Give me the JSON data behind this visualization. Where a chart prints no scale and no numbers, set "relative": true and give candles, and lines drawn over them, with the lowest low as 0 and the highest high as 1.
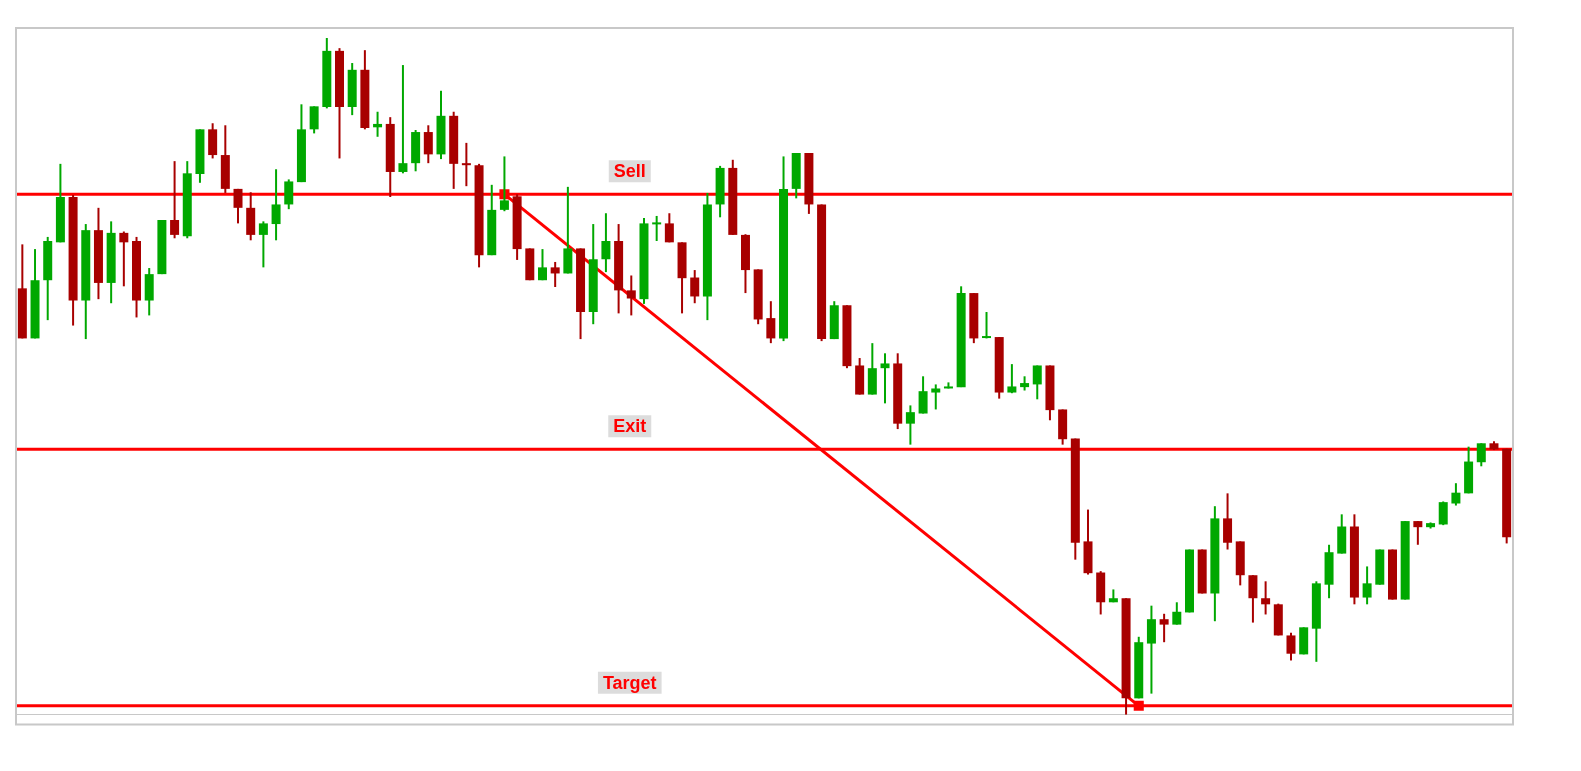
{
  "chart_data": {
    "type": "candlestick",
    "relative": true,
    "categories": [
      null,
      null,
      null,
      null,
      null,
      null,
      null,
      null,
      null,
      null,
      null,
      null,
      null,
      null,
      null,
      null,
      null,
      null,
      null,
      null,
      null,
      null,
      null,
      null,
      null,
      null,
      null,
      null,
      null,
      null,
      null,
      null,
      null,
      null,
      null,
      null,
      null,
      null,
      null,
      null,
      null,
      null,
      null,
      null,
      null,
      null,
      null,
      null,
      null,
      null,
      null,
      null,
      null,
      null,
      null,
      null,
      null,
      null,
      null,
      null,
      null,
      null,
      null,
      null,
      null,
      null,
      null,
      null,
      null,
      null,
      null,
      null,
      null,
      null,
      null,
      null,
      null,
      null,
      null,
      null,
      null,
      null,
      null,
      null,
      null,
      null,
      null,
      null,
      null,
      null,
      null,
      null,
      null,
      null,
      null,
      null,
      null,
      null,
      null,
      null,
      null,
      null,
      null,
      null,
      null,
      null,
      null,
      null,
      null,
      null,
      null,
      null,
      null,
      null,
      null,
      null,
      null,
      null
    ],
    "ohlc": [
      [
        0.63,
        0.695,
        0.556,
        0.556
      ],
      [
        0.556,
        0.688,
        0.556,
        0.642
      ],
      [
        0.642,
        0.706,
        0.583,
        0.7
      ],
      [
        0.698,
        0.814,
        0.698,
        0.765
      ],
      [
        0.765,
        0.768,
        0.575,
        0.612
      ],
      [
        0.612,
        0.725,
        0.555,
        0.716
      ],
      [
        0.716,
        0.749,
        0.614,
        0.638
      ],
      [
        0.638,
        0.729,
        0.608,
        0.712
      ],
      [
        0.712,
        0.714,
        0.633,
        0.698
      ],
      [
        0.7,
        0.706,
        0.587,
        0.612
      ],
      [
        0.612,
        0.66,
        0.59,
        0.651
      ],
      [
        0.651,
        0.731,
        0.651,
        0.731
      ],
      [
        0.731,
        0.818,
        0.704,
        0.709
      ],
      [
        0.707,
        0.818,
        0.704,
        0.8
      ],
      [
        0.799,
        0.865,
        0.786,
        0.865
      ],
      [
        0.865,
        0.874,
        0.822,
        0.827
      ],
      [
        0.827,
        0.871,
        0.771,
        0.777
      ],
      [
        0.777,
        0.777,
        0.726,
        0.749
      ],
      [
        0.749,
        0.772,
        0.701,
        0.709
      ],
      [
        0.709,
        0.729,
        0.661,
        0.726
      ],
      [
        0.725,
        0.806,
        0.701,
        0.754
      ],
      [
        0.754,
        0.791,
        0.747,
        0.788
      ],
      [
        0.787,
        0.902,
        0.787,
        0.865
      ],
      [
        0.865,
        0.899,
        0.859,
        0.899
      ],
      [
        0.898,
        1.0,
        0.896,
        0.981
      ],
      [
        0.981,
        0.985,
        0.822,
        0.898
      ],
      [
        0.898,
        0.963,
        0.886,
        0.953
      ],
      [
        0.953,
        0.982,
        0.865,
        0.867
      ],
      [
        0.868,
        0.891,
        0.854,
        0.873
      ],
      [
        0.873,
        0.883,
        0.765,
        0.802
      ],
      [
        0.802,
        0.96,
        0.8,
        0.815
      ],
      [
        0.815,
        0.864,
        0.803,
        0.861
      ],
      [
        0.861,
        0.871,
        0.815,
        0.828
      ],
      [
        0.828,
        0.922,
        0.821,
        0.885
      ],
      [
        0.885,
        0.891,
        0.777,
        0.814
      ],
      [
        0.815,
        0.845,
        0.781,
        0.812
      ],
      [
        0.812,
        0.814,
        0.661,
        0.679
      ],
      [
        0.679,
        0.783,
        0.679,
        0.746
      ],
      [
        0.746,
        0.825,
        0.744,
        0.76
      ],
      [
        0.766,
        0.769,
        0.672,
        0.688
      ],
      [
        0.689,
        0.689,
        0.642,
        0.642
      ],
      [
        0.642,
        0.688,
        0.642,
        0.661
      ],
      [
        0.661,
        0.669,
        0.632,
        0.652
      ],
      [
        0.652,
        0.78,
        0.652,
        0.689
      ],
      [
        0.689,
        0.689,
        0.555,
        0.595
      ],
      [
        0.595,
        0.725,
        0.577,
        0.673
      ],
      [
        0.673,
        0.741,
        0.654,
        0.7
      ],
      [
        0.7,
        0.725,
        0.593,
        0.627
      ],
      [
        0.627,
        0.649,
        0.59,
        0.615
      ],
      [
        0.614,
        0.734,
        0.607,
        0.726
      ],
      [
        0.725,
        0.737,
        0.7,
        0.726
      ],
      [
        0.726,
        0.741,
        0.698,
        0.698
      ],
      [
        0.698,
        0.698,
        0.593,
        0.645
      ],
      [
        0.646,
        0.657,
        0.608,
        0.618
      ],
      [
        0.618,
        0.771,
        0.583,
        0.754
      ],
      [
        0.754,
        0.811,
        0.735,
        0.808
      ],
      [
        0.808,
        0.82,
        0.709,
        0.709
      ],
      [
        0.709,
        0.71,
        0.623,
        0.657
      ],
      [
        0.658,
        0.658,
        0.577,
        0.584
      ],
      [
        0.586,
        0.611,
        0.549,
        0.556
      ],
      [
        0.556,
        0.825,
        0.552,
        0.777
      ],
      [
        0.777,
        0.83,
        0.763,
        0.83
      ],
      [
        0.83,
        0.83,
        0.74,
        0.754
      ],
      [
        0.754,
        0.754,
        0.552,
        0.555
      ],
      [
        0.555,
        0.611,
        0.555,
        0.605
      ],
      [
        0.605,
        0.605,
        0.512,
        0.515
      ],
      [
        0.516,
        0.527,
        0.473,
        0.473
      ],
      [
        0.473,
        0.549,
        0.473,
        0.512
      ],
      [
        0.512,
        0.534,
        0.46,
        0.519
      ],
      [
        0.519,
        0.534,
        0.422,
        0.43
      ],
      [
        0.43,
        0.457,
        0.399,
        0.447
      ],
      [
        0.445,
        0.5,
        0.445,
        0.478
      ],
      [
        0.476,
        0.488,
        0.451,
        0.482
      ],
      [
        0.482,
        0.491,
        0.482,
        0.485
      ],
      [
        0.484,
        0.633,
        0.484,
        0.623
      ],
      [
        0.623,
        0.623,
        0.549,
        0.556
      ],
      [
        0.556,
        0.595,
        0.556,
        0.558
      ],
      [
        0.558,
        0.558,
        0.467,
        0.476
      ],
      [
        0.476,
        0.518,
        0.475,
        0.485
      ],
      [
        0.484,
        0.5,
        0.479,
        0.49
      ],
      [
        0.488,
        0.516,
        0.466,
        0.516
      ],
      [
        0.516,
        0.516,
        0.435,
        0.45
      ],
      [
        0.451,
        0.451,
        0.399,
        0.407
      ],
      [
        0.408,
        0.408,
        0.229,
        0.254
      ],
      [
        0.256,
        0.303,
        0.207,
        0.209
      ],
      [
        0.21,
        0.212,
        0.148,
        0.166
      ],
      [
        0.166,
        0.185,
        0.166,
        0.172
      ],
      [
        0.172,
        0.172,
        0.0,
        0.024
      ],
      [
        0.024,
        0.115,
        0.024,
        0.107
      ],
      [
        0.105,
        0.161,
        0.031,
        0.141
      ],
      [
        0.141,
        0.149,
        0.107,
        0.133
      ],
      [
        0.133,
        0.166,
        0.133,
        0.152
      ],
      [
        0.151,
        0.244,
        0.151,
        0.244
      ],
      [
        0.244,
        0.244,
        0.179,
        0.179
      ],
      [
        0.179,
        0.308,
        0.138,
        0.29
      ],
      [
        0.29,
        0.327,
        0.244,
        0.254
      ],
      [
        0.256,
        0.256,
        0.191,
        0.206
      ],
      [
        0.206,
        0.206,
        0.136,
        0.172
      ],
      [
        0.172,
        0.197,
        0.148,
        0.163
      ],
      [
        0.163,
        0.164,
        0.117,
        0.117
      ],
      [
        0.117,
        0.121,
        0.08,
        0.09
      ],
      [
        0.089,
        0.129,
        0.089,
        0.129
      ],
      [
        0.127,
        0.197,
        0.078,
        0.194
      ],
      [
        0.192,
        0.251,
        0.172,
        0.24
      ],
      [
        0.238,
        0.296,
        0.238,
        0.278
      ],
      [
        0.278,
        0.296,
        0.163,
        0.173
      ],
      [
        0.173,
        0.219,
        0.163,
        0.194
      ],
      [
        0.192,
        0.244,
        0.192,
        0.244
      ],
      [
        0.244,
        0.244,
        0.17,
        0.17
      ],
      [
        0.17,
        0.286,
        0.17,
        0.286
      ],
      [
        0.286,
        0.286,
        0.251,
        0.277
      ],
      [
        0.277,
        0.284,
        0.275,
        0.283
      ],
      [
        0.281,
        0.315,
        0.28,
        0.314
      ],
      [
        0.312,
        0.342,
        0.309,
        0.328
      ],
      [
        0.327,
        0.396,
        0.327,
        0.374
      ],
      [
        0.373,
        0.401,
        0.367,
        0.401
      ],
      [
        0.401,
        0.404,
        0.391,
        0.392
      ],
      [
        0.393,
        0.393,
        0.253,
        0.262
      ]
    ],
    "colors": [
      "#a80000",
      "#00a800",
      "#00a800",
      "#00a800",
      "#a80000",
      "#00a800",
      "#a80000",
      "#00a800",
      "#a80000",
      "#a80000",
      "#00a800",
      "#00a800",
      "#a80000",
      "#00a800",
      "#00a800",
      "#a80000",
      "#a80000",
      "#a80000",
      "#a80000",
      "#00a800",
      "#00a800",
      "#00a800",
      "#00a800",
      "#00a800",
      "#00a800",
      "#a80000",
      "#00a800",
      "#a80000",
      "#00a800",
      "#a80000",
      "#00a800",
      "#00a800",
      "#a80000",
      "#00a800",
      "#a80000",
      "#a80000",
      "#a80000",
      "#00a800",
      "#00a800",
      "#a80000",
      "#a80000",
      "#00a800",
      "#a80000",
      "#00a800",
      "#a80000",
      "#00a800",
      "#00a800",
      "#a80000",
      "#a80000",
      "#00a800",
      "#00a800",
      "#a80000",
      "#a80000",
      "#a80000",
      "#00a800",
      "#00a800",
      "#a80000",
      "#a80000",
      "#a80000",
      "#a80000",
      "#00a800",
      "#00a800",
      "#a80000",
      "#a80000",
      "#00a800",
      "#a80000",
      "#a80000",
      "#00a800",
      "#00a800",
      "#a80000",
      "#00a800",
      "#00a800",
      "#00a800",
      "#00a800",
      "#00a800",
      "#a80000",
      "#00a800",
      "#a80000",
      "#00a800",
      "#00a800",
      "#00a800",
      "#a80000",
      "#a80000",
      "#a80000",
      "#a80000",
      "#a80000",
      "#00a800",
      "#a80000",
      "#00a800",
      "#00a800",
      "#a80000",
      "#00a800",
      "#00a800",
      "#a80000",
      "#00a800",
      "#a80000",
      "#a80000",
      "#a80000",
      "#a80000",
      "#a80000",
      "#a80000",
      "#00a800",
      "#00a800",
      "#00a800",
      "#00a800",
      "#a80000",
      "#00a800",
      "#00a800",
      "#a80000",
      "#00a800",
      "#a80000",
      "#00a800",
      "#00a800",
      "#00a800",
      "#00a800",
      "#00a800",
      "#a80000",
      "#a80000"
    ],
    "series": [
      {
        "type": "line",
        "color": "#ff0000",
        "marker": "square",
        "values": [
          null,
          null,
          null,
          null,
          null,
          null,
          null,
          null,
          null,
          null,
          null,
          null,
          null,
          null,
          null,
          null,
          null,
          null,
          null,
          null,
          null,
          null,
          null,
          null,
          null,
          null,
          null,
          null,
          null,
          null,
          null,
          null,
          null,
          null,
          null,
          null,
          null,
          null,
          0.769,
          null,
          null,
          null,
          null,
          null,
          null,
          null,
          null,
          null,
          null,
          null,
          null,
          null,
          null,
          null,
          null,
          null,
          null,
          null,
          null,
          null,
          null,
          null,
          null,
          null,
          null,
          null,
          null,
          null,
          null,
          null,
          null,
          null,
          null,
          null,
          null,
          null,
          null,
          null,
          null,
          null,
          null,
          null,
          null,
          null,
          null,
          null,
          null,
          null,
          0.013,
          null,
          null,
          null,
          null,
          null,
          null,
          null,
          null,
          null,
          null,
          null,
          null,
          null,
          null,
          null,
          null,
          null,
          null,
          null,
          null,
          null,
          null,
          null,
          null,
          null,
          null,
          null,
          null,
          null
        ]
      }
    ],
    "ref_lines": [
      {
        "axis": "y",
        "value": 0.769,
        "label": "Sell",
        "color": "#ff0000"
      },
      {
        "axis": "y",
        "value": 0.392,
        "label": "Exit",
        "color": "#ff0000"
      },
      {
        "axis": "y",
        "value": 0.013,
        "label": "Target",
        "color": "#ff0000"
      }
    ]
  }
}
